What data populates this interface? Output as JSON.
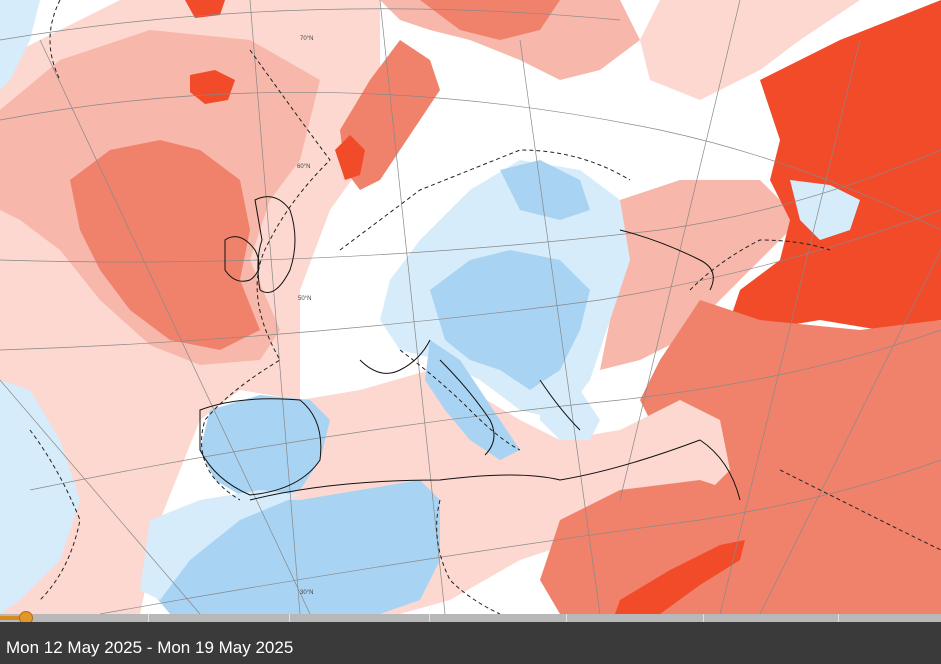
{
  "map": {
    "colors": {
      "strong_warm": "#f24b2a",
      "warm": "#f0826c",
      "light_warm": "#f7b7aa",
      "pale_warm": "#fcd8d0",
      "neutral": "#ffffff",
      "pale_cool": "#d6ecfa",
      "cool": "#a9d3f2"
    },
    "grid_labels": {
      "lat70": "70°N",
      "lat60": "60°N",
      "lat50": "50°N",
      "lat30": "30°N"
    }
  },
  "timeline": {
    "progress": 0.02
  },
  "footer": {
    "date_range": "Mon 12 May 2025 - Mon 19 May 2025"
  }
}
